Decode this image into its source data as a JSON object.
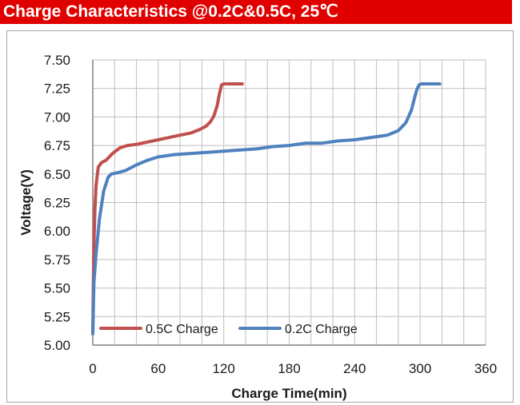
{
  "title": "Charge  Characteristics @0.2C&0.5C, 25℃",
  "colors": {
    "title_bg": "#e00000",
    "title_text": "#ffffff",
    "series_05c": "#c0504d",
    "series_02c": "#4f81bd",
    "grid": "#bfbfbf",
    "axis": "#808080"
  },
  "chart_data": {
    "type": "line",
    "xlabel": "Charge Time(min)",
    "ylabel": "Voltage(V)",
    "xlim": [
      0,
      360
    ],
    "ylim": [
      5.0,
      7.5
    ],
    "x_ticks": [
      0,
      60,
      120,
      180,
      240,
      300,
      360
    ],
    "y_ticks": [
      7.5,
      7.25,
      7.0,
      6.75,
      6.5,
      6.25,
      6.0,
      5.75,
      5.5,
      5.25,
      5.0
    ],
    "x_tick_labels": [
      "0",
      "60",
      "120",
      "180",
      "240",
      "300",
      "360"
    ],
    "y_tick_labels": [
      "7.50",
      "7.25",
      "7.00",
      "6.75",
      "6.50",
      "6.25",
      "6.00",
      "5.75",
      "5.50",
      "5.25",
      "5.00"
    ],
    "grid": true,
    "legend_position": "bottom-left",
    "series": [
      {
        "name": "0.5C Charge",
        "color": "#c0504d",
        "x": [
          0,
          0.5,
          1,
          2,
          3,
          5,
          8,
          12,
          18,
          25,
          32,
          40,
          50,
          60,
          70,
          80,
          90,
          98,
          104,
          108,
          111,
          114,
          116,
          118,
          120,
          130,
          137
        ],
        "y": [
          5.1,
          5.55,
          5.9,
          6.2,
          6.4,
          6.56,
          6.6,
          6.62,
          6.68,
          6.73,
          6.75,
          6.76,
          6.78,
          6.8,
          6.82,
          6.84,
          6.86,
          6.89,
          6.92,
          6.96,
          7.01,
          7.1,
          7.2,
          7.28,
          7.29,
          7.29,
          7.29
        ]
      },
      {
        "name": "0.2C Charge",
        "color": "#4f81bd",
        "x": [
          0,
          1,
          3,
          6,
          10,
          14,
          17,
          22,
          30,
          40,
          50,
          60,
          75,
          90,
          105,
          120,
          135,
          150,
          165,
          180,
          195,
          210,
          225,
          240,
          255,
          270,
          280,
          287,
          292,
          295,
          297,
          299,
          301,
          310,
          318
        ],
        "y": [
          5.1,
          5.55,
          5.8,
          6.1,
          6.35,
          6.47,
          6.5,
          6.51,
          6.53,
          6.58,
          6.62,
          6.65,
          6.67,
          6.68,
          6.69,
          6.7,
          6.71,
          6.72,
          6.74,
          6.75,
          6.77,
          6.77,
          6.79,
          6.8,
          6.82,
          6.84,
          6.88,
          6.95,
          7.06,
          7.17,
          7.24,
          7.28,
          7.29,
          7.29,
          7.29
        ]
      }
    ]
  }
}
